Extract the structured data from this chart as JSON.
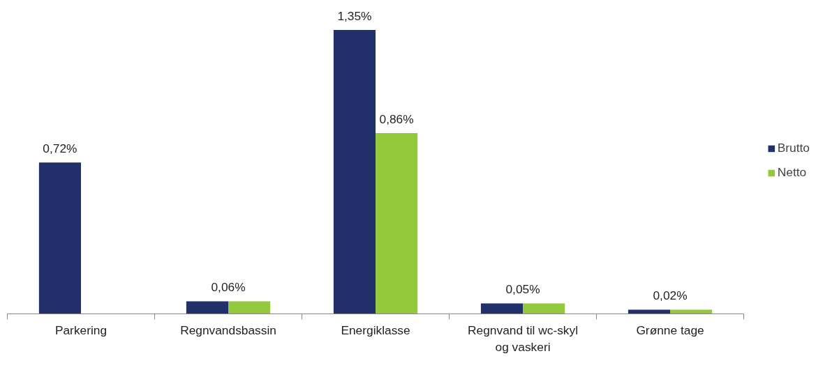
{
  "chart_data": {
    "type": "bar",
    "categories": [
      "Parkering",
      "Regnvandsbassin",
      "Energiklasse",
      "Regnvand til wc-skyl og vaskeri",
      "Grønne tage"
    ],
    "series": [
      {
        "name": "Brutto",
        "color": "#21306b",
        "values": [
          0.72,
          0.06,
          1.35,
          0.05,
          0.02
        ],
        "value_labels": [
          "0,72%",
          "0,06%",
          "1,35%",
          "0,05%",
          "0,02%"
        ]
      },
      {
        "name": "Netto",
        "color": "#94c83d",
        "values": [
          null,
          0.06,
          0.86,
          0.05,
          0.02
        ],
        "value_labels": [
          null,
          null,
          "0,86%",
          null,
          null
        ]
      }
    ],
    "legend": "right",
    "grid": false
  }
}
